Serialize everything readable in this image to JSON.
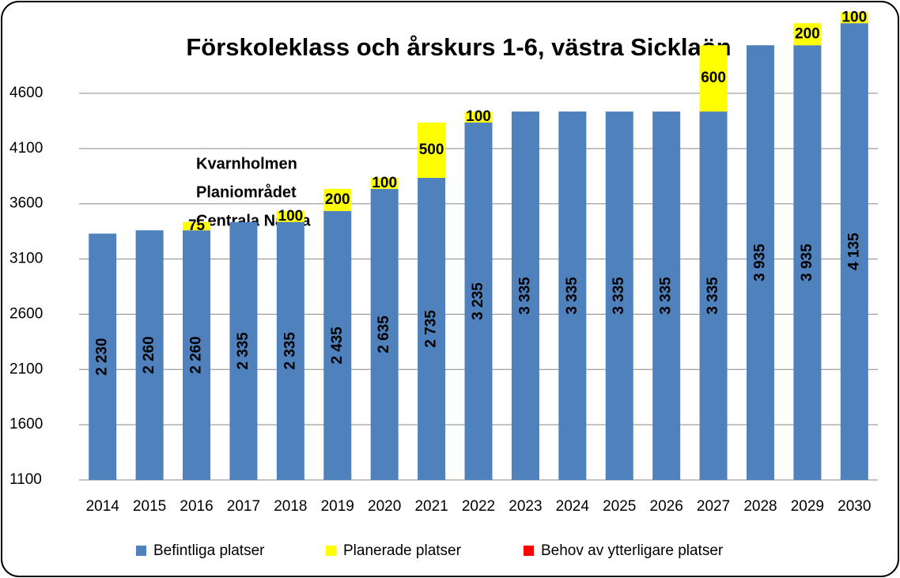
{
  "chart_data": {
    "type": "bar",
    "stacked": true,
    "title": "Förskoleklass och årskurs 1-6, västra Sicklaön",
    "annotations": [
      "Kvarnholmen",
      "Planiområdet",
      "Centrala Nacka"
    ],
    "categories": [
      "2014",
      "2015",
      "2016",
      "2017",
      "2018",
      "2019",
      "2020",
      "2021",
      "2022",
      "2023",
      "2024",
      "2025",
      "2026",
      "2027",
      "2028",
      "2029",
      "2030"
    ],
    "series": [
      {
        "name": "Befintliga platser",
        "color": "#4f81bd",
        "values": [
          2230,
          2260,
          2260,
          2335,
          2335,
          2435,
          2635,
          2735,
          3235,
          3335,
          3335,
          3335,
          3335,
          3335,
          3935,
          3935,
          4135
        ],
        "value_labels": [
          "2 230",
          "2 260",
          "2 260",
          "2 335",
          "2 335",
          "2 435",
          "2 635",
          "2 735",
          "3 235",
          "3 335",
          "3 335",
          "3 335",
          "3 335",
          "3 335",
          "3 935",
          "3 935",
          "4 135"
        ]
      },
      {
        "name": "Planerade platser",
        "color": "#ffff00",
        "values": [
          null,
          null,
          75,
          null,
          100,
          200,
          100,
          500,
          100,
          null,
          null,
          null,
          null,
          600,
          null,
          200,
          100
        ]
      },
      {
        "name": "Behov av ytterligare platser",
        "color": "#ff0000",
        "values": [
          null,
          null,
          null,
          null,
          null,
          null,
          null,
          null,
          null,
          null,
          null,
          null,
          null,
          null,
          null,
          null,
          null
        ]
      }
    ],
    "ylim": [
      1100,
      4600
    ],
    "yticks": [
      1100,
      1600,
      2100,
      2600,
      3100,
      3600,
      4100,
      4600
    ],
    "grid": true
  }
}
